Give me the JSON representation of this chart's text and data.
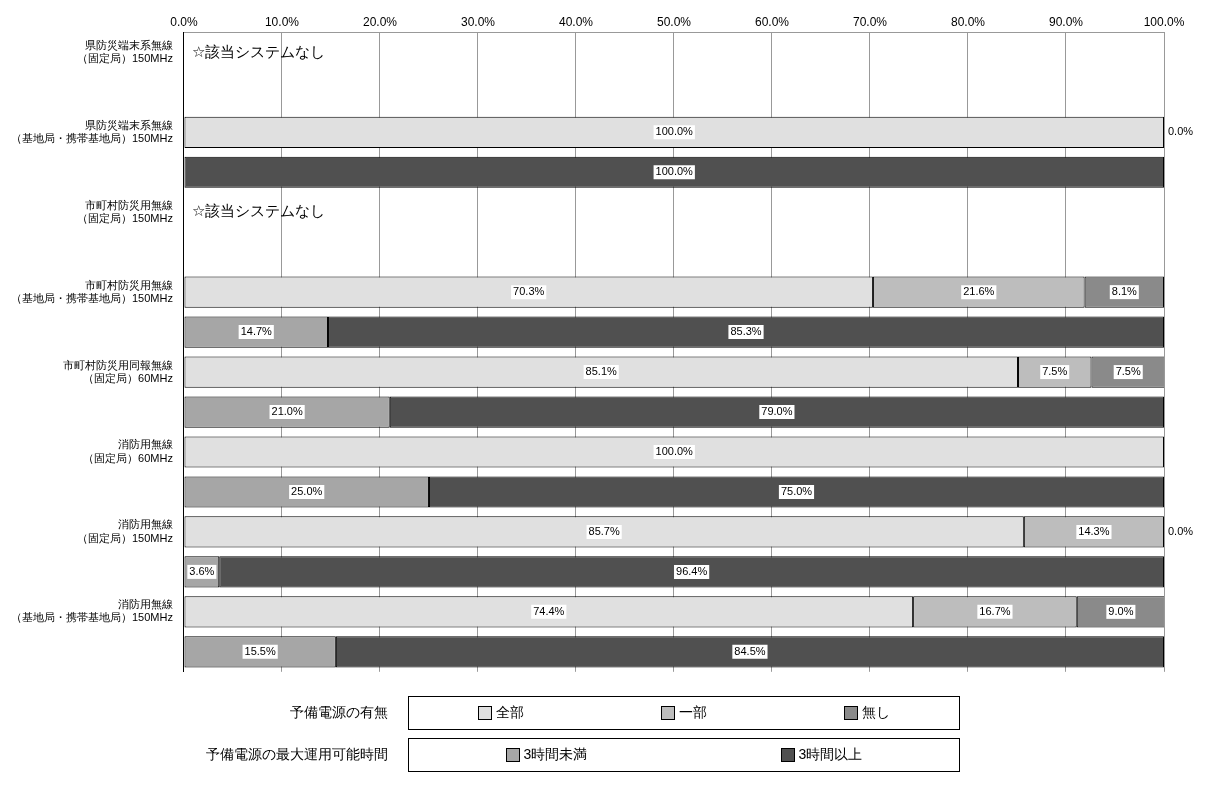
{
  "chart_data": {
    "type": "bar",
    "orientation": "horizontal",
    "stacked": true,
    "categories": [
      "県防災端末系無線（固定局）150MHz",
      null,
      "県防災端末系無線（基地局・携帯基地局）150MHz",
      null,
      "市町村防災用無線（固定局）150MHz",
      null,
      "市町村防災用無線（基地局・携帯基地局）150MHz",
      null,
      "市町村防災用同報無線（固定局）60MHz",
      null,
      "消防用無線（固定局）60MHz",
      null,
      "消防用無線（固定局）150MHz",
      null,
      "消防用無線（基地局・携帯基地局）150MHz",
      null
    ],
    "series": [
      {
        "name": "全部",
        "color": "#e0e0e0",
        "values": [
          null,
          null,
          100,
          null,
          null,
          null,
          70.3,
          null,
          85.1,
          null,
          100,
          null,
          85.7,
          null,
          74.4,
          null
        ],
        "value_labels": [
          null,
          null,
          "100.0%",
          null,
          null,
          null,
          "70.3%",
          null,
          "85.1%",
          null,
          "100.0%",
          null,
          "85.7%",
          null,
          "74.4%",
          null
        ]
      },
      {
        "name": "一部",
        "color": "#bdbdbd",
        "values": [
          null,
          null,
          null,
          null,
          null,
          null,
          21.6,
          null,
          7.5,
          null,
          null,
          null,
          14.3,
          null,
          16.7,
          null
        ],
        "value_labels": [
          null,
          null,
          null,
          null,
          null,
          null,
          "21.6%",
          null,
          "7.5%",
          null,
          null,
          null,
          "14.3%",
          null,
          "16.7%",
          null
        ]
      },
      {
        "name": "無し",
        "color": "#8a8a8a",
        "values": [
          null,
          null,
          0,
          null,
          null,
          null,
          8.1,
          null,
          7.5,
          null,
          null,
          null,
          0,
          null,
          9.0,
          null
        ],
        "value_labels": [
          null,
          null,
          "0.0%",
          null,
          null,
          null,
          "8.1%",
          null,
          "7.5%",
          null,
          null,
          null,
          "0.0%",
          null,
          "9.0%",
          null
        ]
      },
      {
        "name": "3時間未満",
        "color": "#a6a6a6",
        "values": [
          null,
          null,
          null,
          null,
          null,
          null,
          null,
          14.7,
          null,
          21.0,
          null,
          25.0,
          null,
          3.6,
          null,
          15.5
        ],
        "value_labels": [
          null,
          null,
          null,
          null,
          null,
          null,
          null,
          "14.7%",
          null,
          "21.0%",
          null,
          "25.0%",
          null,
          "3.6%",
          null,
          "15.5%"
        ]
      },
      {
        "name": "3時間以上",
        "color": "#505050",
        "values": [
          null,
          null,
          null,
          100,
          null,
          null,
          null,
          85.3,
          null,
          79.0,
          null,
          75.0,
          null,
          96.4,
          null,
          84.5
        ],
        "value_labels": [
          null,
          null,
          null,
          "100.0%",
          null,
          null,
          null,
          "85.3%",
          null,
          "79.0%",
          null,
          "75.0%",
          null,
          "96.4%",
          null,
          "84.5%"
        ]
      }
    ],
    "xlim": [
      0,
      100
    ],
    "xticks": [
      {
        "value": 0,
        "label": "0.0%"
      },
      {
        "value": 10,
        "label": "10.0%"
      },
      {
        "value": 20,
        "label": "20.0%"
      },
      {
        "value": 30,
        "label": "30.0%"
      },
      {
        "value": 40,
        "label": "40.0%"
      },
      {
        "value": 50,
        "label": "50.0%"
      },
      {
        "value": 60,
        "label": "60.0%"
      },
      {
        "value": 70,
        "label": "70.0%"
      },
      {
        "value": 80,
        "label": "80.0%"
      },
      {
        "value": 90,
        "label": "90.0%"
      },
      {
        "value": 100,
        "label": "100.0%"
      }
    ],
    "grid": "x",
    "legend": "bottom",
    "annotations": [
      "予備電源の有無",
      "予備電源の最大運用可能時間",
      "☆該当システムなし",
      "☆該当システムなし"
    ]
  }
}
